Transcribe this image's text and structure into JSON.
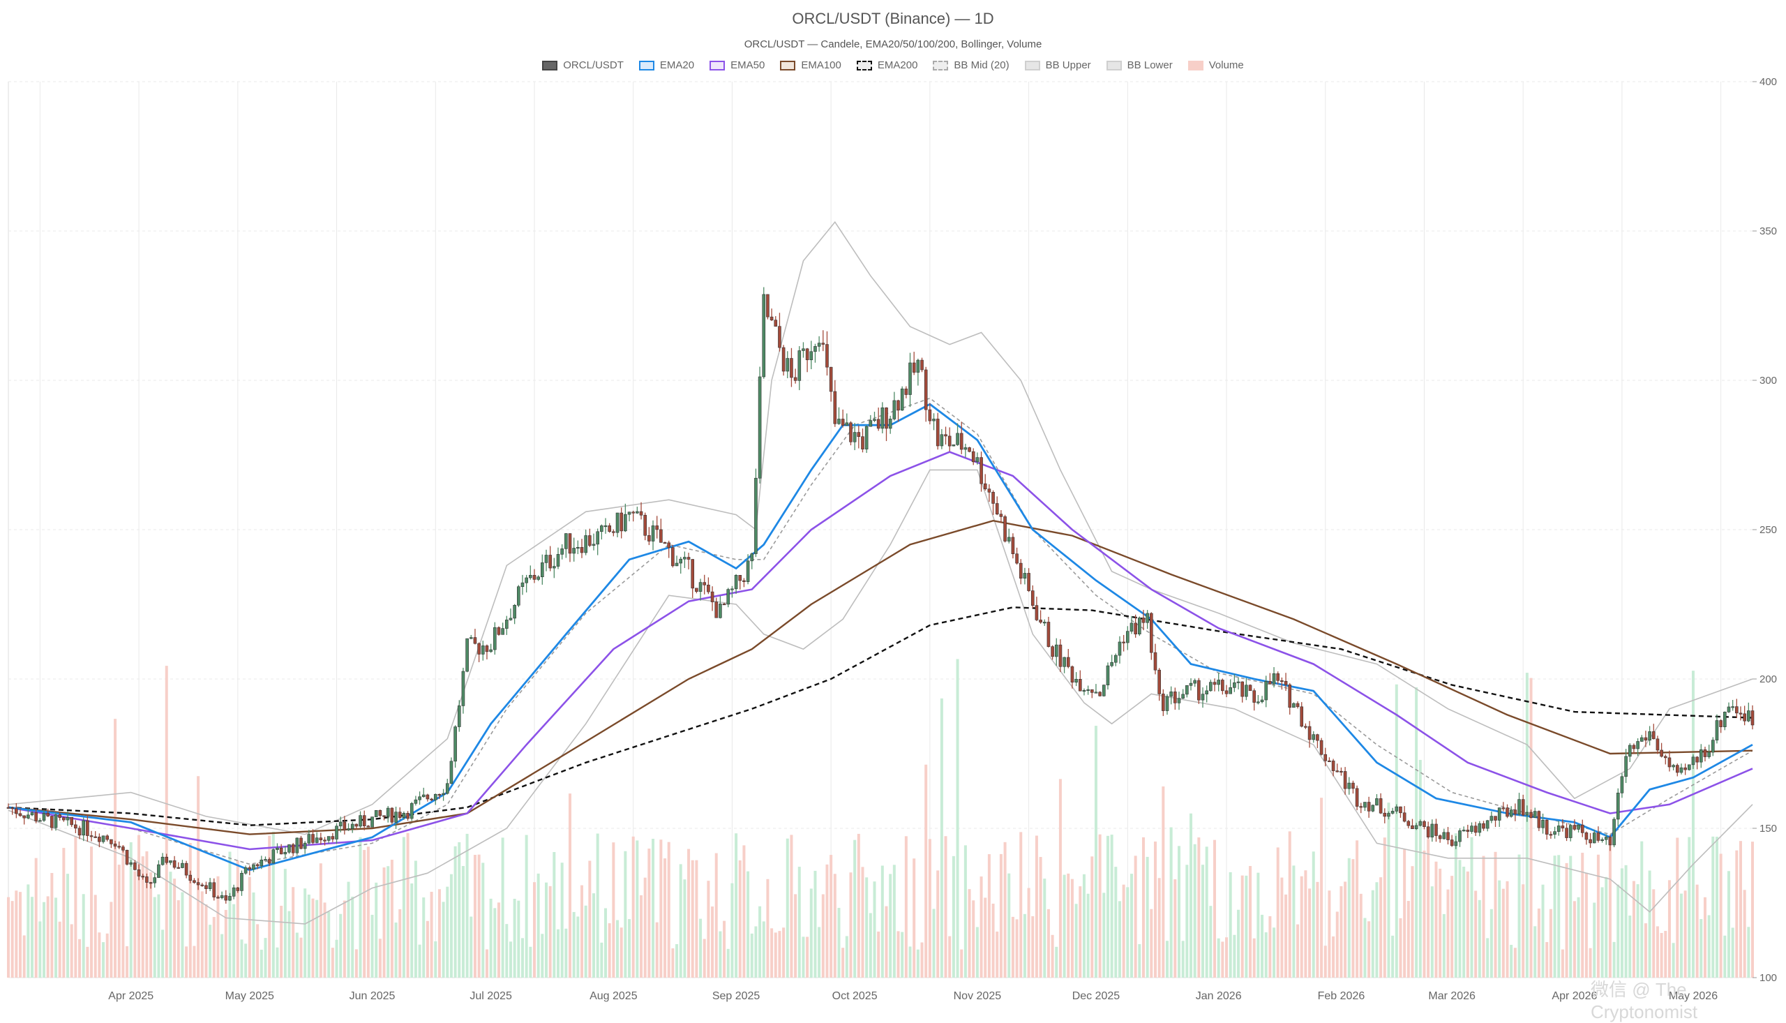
{
  "header": {
    "title": "ORCL/USDT (Binance) — 1D",
    "subtitle": "ORCL/USDT — Candele, EMA20/50/100/200, Bollinger, Volume"
  },
  "legend": [
    {
      "label": "ORCL/USDT",
      "fill": "#666666",
      "border": "#444444",
      "style": "solid"
    },
    {
      "label": "EMA20",
      "fill": "#dbeafb",
      "border": "#1e88e5",
      "style": "solid"
    },
    {
      "label": "EMA50",
      "fill": "#efe6fb",
      "border": "#8c52e8",
      "style": "solid"
    },
    {
      "label": "EMA100",
      "fill": "#f1e6dc",
      "border": "#7a4a2a",
      "style": "solid"
    },
    {
      "label": "EMA200",
      "fill": "#eeeeee",
      "border": "#111111",
      "style": "dashed"
    },
    {
      "label": "BB Mid (20)",
      "fill": "#eeeeee",
      "border": "#aaaaaa",
      "style": "dashed"
    },
    {
      "label": "BB Upper",
      "fill": "#e6e6e6",
      "border": "#cfcfcf",
      "style": "solid"
    },
    {
      "label": "BB Lower",
      "fill": "#e6e6e6",
      "border": "#cfcfcf",
      "style": "solid"
    },
    {
      "label": "Volume",
      "fill": "#f7cfc8",
      "border": "#f7cfc8",
      "style": "solid"
    }
  ],
  "watermark": "微信 @ The Cryptonomist",
  "colors": {
    "up": "#4e8a65",
    "down": "#a34a3a",
    "vol_up": "#c8ecd6",
    "vol_down": "#f7cfc8",
    "ema20": "#1e88e5",
    "ema50": "#8c52e8",
    "ema100": "#7a4a2a",
    "ema200": "#111111",
    "bb_band": "#bdbdbd",
    "bb_mid": "#9a9a9a",
    "grid": "#e9e9e9"
  },
  "chart_data": {
    "type": "candlestick",
    "title": "ORCL/USDT (Binance) — 1D",
    "ylim": [
      100,
      400
    ],
    "y_ticks": [
      100,
      150,
      200,
      250,
      300,
      350,
      400
    ],
    "x_range": [
      "2025-03-01",
      "2026-05-16"
    ],
    "x_ticks": [
      {
        "date": "2025-04-01",
        "label": "Apr 2025"
      },
      {
        "date": "2025-05-01",
        "label": "May 2025"
      },
      {
        "date": "2025-06-01",
        "label": "Jun 2025"
      },
      {
        "date": "2025-07-01",
        "label": "Jul 2025"
      },
      {
        "date": "2025-08-01",
        "label": "Aug 2025"
      },
      {
        "date": "2025-09-01",
        "label": "Sep 2025"
      },
      {
        "date": "2025-10-01",
        "label": "Oct 2025"
      },
      {
        "date": "2025-11-01",
        "label": "Nov 2025"
      },
      {
        "date": "2025-12-01",
        "label": "Dec 2025"
      },
      {
        "date": "2026-01-01",
        "label": "Jan 2026"
      },
      {
        "date": "2026-02-01",
        "label": "Feb 2026"
      },
      {
        "date": "2026-03-01",
        "label": "Mar 2026"
      },
      {
        "date": "2026-04-01",
        "label": "Apr 2026"
      },
      {
        "date": "2026-05-01",
        "label": "May 2026"
      }
    ],
    "grid": true,
    "legend_position": "top-center",
    "close_path": [
      [
        "2025-03-01",
        157
      ],
      [
        "2025-03-10",
        153
      ],
      [
        "2025-03-20",
        150
      ],
      [
        "2025-03-28",
        146
      ],
      [
        "2025-04-05",
        130
      ],
      [
        "2025-04-10",
        140
      ],
      [
        "2025-04-20",
        131
      ],
      [
        "2025-04-25",
        125
      ],
      [
        "2025-05-01",
        137
      ],
      [
        "2025-05-10",
        143
      ],
      [
        "2025-05-20",
        148
      ],
      [
        "2025-06-01",
        153
      ],
      [
        "2025-06-10",
        156
      ],
      [
        "2025-06-20",
        165
      ],
      [
        "2025-06-25",
        210
      ],
      [
        "2025-07-01",
        212
      ],
      [
        "2025-07-10",
        232
      ],
      [
        "2025-07-20",
        245
      ],
      [
        "2025-07-30",
        248
      ],
      [
        "2025-08-05",
        255
      ],
      [
        "2025-08-12",
        247
      ],
      [
        "2025-08-20",
        236
      ],
      [
        "2025-08-28",
        222
      ],
      [
        "2025-09-05",
        240
      ],
      [
        "2025-09-08",
        325
      ],
      [
        "2025-09-15",
        300
      ],
      [
        "2025-09-22",
        318
      ],
      [
        "2025-09-26",
        285
      ],
      [
        "2025-10-03",
        280
      ],
      [
        "2025-10-10",
        290
      ],
      [
        "2025-10-17",
        305
      ],
      [
        "2025-10-22",
        280
      ],
      [
        "2025-10-30",
        278
      ],
      [
        "2025-11-05",
        260
      ],
      [
        "2025-11-12",
        235
      ],
      [
        "2025-11-20",
        210
      ],
      [
        "2025-11-26",
        200
      ],
      [
        "2025-12-02",
        196
      ],
      [
        "2025-12-08",
        215
      ],
      [
        "2025-12-14",
        220
      ],
      [
        "2025-12-17",
        192
      ],
      [
        "2025-12-25",
        196
      ],
      [
        "2026-01-05",
        197
      ],
      [
        "2026-01-10",
        193
      ],
      [
        "2026-01-15",
        200
      ],
      [
        "2026-01-20",
        192
      ],
      [
        "2026-01-25",
        180
      ],
      [
        "2026-02-05",
        160
      ],
      [
        "2026-02-15",
        155
      ],
      [
        "2026-02-22",
        150
      ],
      [
        "2026-03-01",
        146
      ],
      [
        "2026-03-10",
        152
      ],
      [
        "2026-03-18",
        158
      ],
      [
        "2026-03-25",
        150
      ],
      [
        "2026-04-02",
        149
      ],
      [
        "2026-04-10",
        144
      ],
      [
        "2026-04-14",
        175
      ],
      [
        "2026-04-20",
        182
      ],
      [
        "2026-04-27",
        166
      ],
      [
        "2026-05-05",
        178
      ],
      [
        "2026-05-10",
        192
      ],
      [
        "2026-05-16",
        186
      ]
    ],
    "series": [
      {
        "name": "EMA20",
        "points": [
          [
            "2025-03-01",
            157
          ],
          [
            "2025-04-01",
            152
          ],
          [
            "2025-05-01",
            136
          ],
          [
            "2025-06-01",
            147
          ],
          [
            "2025-06-20",
            162
          ],
          [
            "2025-07-01",
            185
          ],
          [
            "2025-07-20",
            215
          ],
          [
            "2025-08-05",
            240
          ],
          [
            "2025-08-20",
            246
          ],
          [
            "2025-09-01",
            237
          ],
          [
            "2025-09-08",
            245
          ],
          [
            "2025-09-20",
            270
          ],
          [
            "2025-09-28",
            285
          ],
          [
            "2025-10-10",
            285
          ],
          [
            "2025-10-20",
            292
          ],
          [
            "2025-11-01",
            280
          ],
          [
            "2025-11-15",
            250
          ],
          [
            "2025-12-01",
            233
          ],
          [
            "2025-12-15",
            220
          ],
          [
            "2025-12-25",
            205
          ],
          [
            "2026-01-10",
            200
          ],
          [
            "2026-01-25",
            196
          ],
          [
            "2026-02-10",
            172
          ],
          [
            "2026-02-25",
            160
          ],
          [
            "2026-03-15",
            155
          ],
          [
            "2026-04-01",
            152
          ],
          [
            "2026-04-10",
            147
          ],
          [
            "2026-04-20",
            163
          ],
          [
            "2026-05-01",
            167
          ],
          [
            "2026-05-16",
            178
          ]
        ]
      },
      {
        "name": "EMA50",
        "points": [
          [
            "2025-03-01",
            157
          ],
          [
            "2025-04-01",
            150
          ],
          [
            "2025-05-01",
            143
          ],
          [
            "2025-06-01",
            146
          ],
          [
            "2025-06-25",
            155
          ],
          [
            "2025-07-10",
            178
          ],
          [
            "2025-08-01",
            210
          ],
          [
            "2025-08-20",
            226
          ],
          [
            "2025-09-05",
            230
          ],
          [
            "2025-09-20",
            250
          ],
          [
            "2025-10-10",
            268
          ],
          [
            "2025-10-25",
            276
          ],
          [
            "2025-11-10",
            268
          ],
          [
            "2025-11-25",
            250
          ],
          [
            "2025-12-15",
            230
          ],
          [
            "2026-01-01",
            217
          ],
          [
            "2026-01-25",
            205
          ],
          [
            "2026-02-15",
            188
          ],
          [
            "2026-03-05",
            172
          ],
          [
            "2026-03-25",
            162
          ],
          [
            "2026-04-10",
            155
          ],
          [
            "2026-04-25",
            158
          ],
          [
            "2026-05-16",
            170
          ]
        ]
      },
      {
        "name": "EMA100",
        "points": [
          [
            "2025-03-01",
            157
          ],
          [
            "2025-04-01",
            153
          ],
          [
            "2025-05-01",
            148
          ],
          [
            "2025-06-01",
            150
          ],
          [
            "2025-06-25",
            155
          ],
          [
            "2025-07-20",
            175
          ],
          [
            "2025-08-20",
            200
          ],
          [
            "2025-09-05",
            210
          ],
          [
            "2025-09-20",
            225
          ],
          [
            "2025-10-15",
            245
          ],
          [
            "2025-11-05",
            253
          ],
          [
            "2025-11-25",
            248
          ],
          [
            "2025-12-20",
            235
          ],
          [
            "2026-01-20",
            220
          ],
          [
            "2026-02-15",
            205
          ],
          [
            "2026-03-15",
            188
          ],
          [
            "2026-04-10",
            175
          ],
          [
            "2026-05-16",
            176
          ]
        ]
      },
      {
        "name": "EMA200",
        "points": [
          [
            "2025-03-01",
            157
          ],
          [
            "2025-04-01",
            155
          ],
          [
            "2025-05-01",
            151
          ],
          [
            "2025-06-01",
            153
          ],
          [
            "2025-06-25",
            157
          ],
          [
            "2025-07-25",
            172
          ],
          [
            "2025-09-05",
            190
          ],
          [
            "2025-09-25",
            200
          ],
          [
            "2025-10-20",
            218
          ],
          [
            "2025-11-10",
            224
          ],
          [
            "2025-11-30",
            223
          ],
          [
            "2026-01-01",
            216
          ],
          [
            "2026-02-01",
            210
          ],
          [
            "2026-03-01",
            198
          ],
          [
            "2026-04-01",
            189
          ],
          [
            "2026-05-16",
            187
          ]
        ]
      },
      {
        "name": "BB Upper",
        "points": [
          [
            "2025-03-01",
            158
          ],
          [
            "2025-04-01",
            162
          ],
          [
            "2025-04-20",
            154
          ],
          [
            "2025-05-15",
            148
          ],
          [
            "2025-06-01",
            158
          ],
          [
            "2025-06-20",
            180
          ],
          [
            "2025-07-05",
            238
          ],
          [
            "2025-07-25",
            256
          ],
          [
            "2025-08-15",
            260
          ],
          [
            "2025-09-01",
            255
          ],
          [
            "2025-09-06",
            250
          ],
          [
            "2025-09-10",
            300
          ],
          [
            "2025-09-18",
            340
          ],
          [
            "2025-09-26",
            353
          ],
          [
            "2025-10-05",
            335
          ],
          [
            "2025-10-15",
            318
          ],
          [
            "2025-10-25",
            312
          ],
          [
            "2025-11-02",
            316
          ],
          [
            "2025-11-12",
            300
          ],
          [
            "2025-11-22",
            270
          ],
          [
            "2025-12-05",
            236
          ],
          [
            "2025-12-15",
            230
          ],
          [
            "2026-01-01",
            222
          ],
          [
            "2026-01-20",
            212
          ],
          [
            "2026-02-10",
            205
          ],
          [
            "2026-02-28",
            190
          ],
          [
            "2026-03-20",
            178
          ],
          [
            "2026-04-01",
            160
          ],
          [
            "2026-04-15",
            170
          ],
          [
            "2026-04-25",
            190
          ],
          [
            "2026-05-16",
            200
          ]
        ]
      },
      {
        "name": "BB Mid (20)",
        "points": [
          [
            "2025-03-01",
            157
          ],
          [
            "2025-04-01",
            150
          ],
          [
            "2025-05-01",
            138
          ],
          [
            "2025-06-01",
            145
          ],
          [
            "2025-06-20",
            158
          ],
          [
            "2025-07-05",
            190
          ],
          [
            "2025-07-25",
            222
          ],
          [
            "2025-08-15",
            245
          ],
          [
            "2025-09-01",
            240
          ],
          [
            "2025-09-08",
            240
          ],
          [
            "2025-09-20",
            265
          ],
          [
            "2025-10-01",
            285
          ],
          [
            "2025-10-20",
            294
          ],
          [
            "2025-11-01",
            282
          ],
          [
            "2025-11-15",
            250
          ],
          [
            "2025-12-01",
            228
          ],
          [
            "2025-12-15",
            215
          ],
          [
            "2026-01-01",
            202
          ],
          [
            "2026-01-25",
            195
          ],
          [
            "2026-02-10",
            178
          ],
          [
            "2026-03-01",
            162
          ],
          [
            "2026-03-20",
            155
          ],
          [
            "2026-04-10",
            148
          ],
          [
            "2026-04-25",
            160
          ],
          [
            "2026-05-16",
            176
          ]
        ]
      },
      {
        "name": "BB Lower",
        "points": [
          [
            "2025-03-01",
            156
          ],
          [
            "2025-04-01",
            140
          ],
          [
            "2025-04-25",
            120
          ],
          [
            "2025-05-15",
            118
          ],
          [
            "2025-06-01",
            130
          ],
          [
            "2025-06-15",
            135
          ],
          [
            "2025-07-05",
            150
          ],
          [
            "2025-07-25",
            185
          ],
          [
            "2025-08-15",
            228
          ],
          [
            "2025-09-01",
            225
          ],
          [
            "2025-09-08",
            215
          ],
          [
            "2025-09-18",
            210
          ],
          [
            "2025-09-28",
            220
          ],
          [
            "2025-10-10",
            245
          ],
          [
            "2025-10-20",
            270
          ],
          [
            "2025-11-01",
            270
          ],
          [
            "2025-11-15",
            215
          ],
          [
            "2025-11-28",
            192
          ],
          [
            "2025-12-05",
            185
          ],
          [
            "2025-12-15",
            195
          ],
          [
            "2026-01-05",
            190
          ],
          [
            "2026-01-25",
            178
          ],
          [
            "2026-02-10",
            145
          ],
          [
            "2026-02-28",
            140
          ],
          [
            "2026-03-20",
            140
          ],
          [
            "2026-04-10",
            133
          ],
          [
            "2026-04-20",
            122
          ],
          [
            "2026-05-01",
            138
          ],
          [
            "2026-05-16",
            158
          ]
        ]
      }
    ]
  }
}
